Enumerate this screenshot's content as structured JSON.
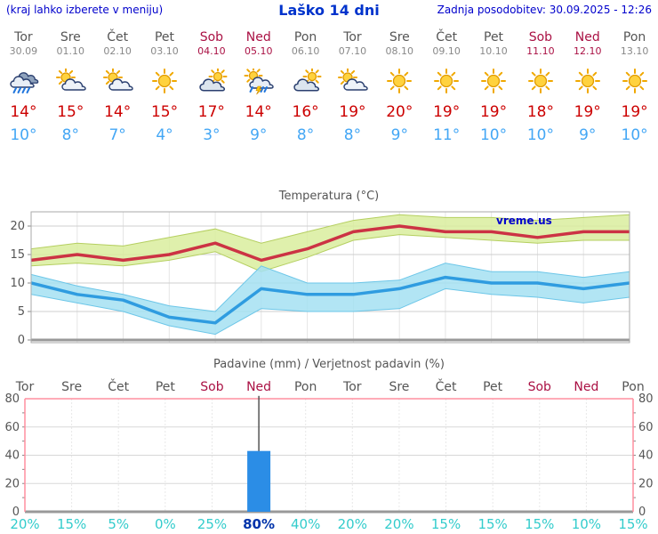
{
  "header": {
    "hint": "(kraj lahko izberete v meniju)",
    "title": "Laško 14 dni",
    "updated": "Zadnja posodobitev: 30.09.2025 - 12:26"
  },
  "colors": {
    "accent_blue": "#0000cc",
    "weekday_text": "#555555",
    "weekend_text": "#aa1144",
    "tmax_red": "#cc0000",
    "tmin_blue": "#44a7f5",
    "temp_line_max": "#cc3344",
    "temp_band_max": "#d9ed9e",
    "temp_line_min": "#2f9ce0",
    "temp_band_min": "#a5e0f2",
    "precip_bar": "#2b8de6",
    "probability_text": "#33cccc",
    "probability_highlight": "#0033aa",
    "precip_frame_pink": "#ff8f9f"
  },
  "days": [
    {
      "name": "Tor",
      "date": "30.09",
      "weekend": false,
      "icon": "rain",
      "tmax": "14°",
      "tmin": "10°"
    },
    {
      "name": "Sre",
      "date": "01.10",
      "weekend": false,
      "icon": "sun-cloud",
      "tmax": "15°",
      "tmin": "8°"
    },
    {
      "name": "Čet",
      "date": "02.10",
      "weekend": false,
      "icon": "sun-cloud",
      "tmax": "14°",
      "tmin": "7°"
    },
    {
      "name": "Pet",
      "date": "03.10",
      "weekend": false,
      "icon": "sun",
      "tmax": "15°",
      "tmin": "4°"
    },
    {
      "name": "Sob",
      "date": "04.10",
      "weekend": true,
      "icon": "cloud-sun",
      "tmax": "17°",
      "tmin": "3°"
    },
    {
      "name": "Ned",
      "date": "05.10",
      "weekend": true,
      "icon": "rain-sun-thunder",
      "tmax": "14°",
      "tmin": "9°"
    },
    {
      "name": "Pon",
      "date": "06.10",
      "weekend": false,
      "icon": "cloud-sun",
      "tmax": "16°",
      "tmin": "8°"
    },
    {
      "name": "Tor",
      "date": "07.10",
      "weekend": false,
      "icon": "sun-cloud",
      "tmax": "19°",
      "tmin": "8°"
    },
    {
      "name": "Sre",
      "date": "08.10",
      "weekend": false,
      "icon": "sun",
      "tmax": "20°",
      "tmin": "9°"
    },
    {
      "name": "Čet",
      "date": "09.10",
      "weekend": false,
      "icon": "sun",
      "tmax": "19°",
      "tmin": "11°"
    },
    {
      "name": "Pet",
      "date": "10.10",
      "weekend": false,
      "icon": "sun",
      "tmax": "19°",
      "tmin": "10°"
    },
    {
      "name": "Sob",
      "date": "11.10",
      "weekend": true,
      "icon": "sun",
      "tmax": "18°",
      "tmin": "10°"
    },
    {
      "name": "Ned",
      "date": "12.10",
      "weekend": true,
      "icon": "sun",
      "tmax": "19°",
      "tmin": "9°"
    },
    {
      "name": "Pon",
      "date": "13.10",
      "weekend": false,
      "icon": "sun",
      "tmax": "19°",
      "tmin": "10°"
    }
  ],
  "chart_data": [
    {
      "type": "line",
      "title": "Temperatura (°C)",
      "watermark": "vreme.us",
      "categories": [
        "30.09",
        "01.10",
        "02.10",
        "03.10",
        "04.10",
        "05.10",
        "06.10",
        "07.10",
        "08.10",
        "09.10",
        "10.10",
        "11.10",
        "12.10",
        "13.10"
      ],
      "yticks": [
        0,
        5,
        10,
        15,
        20
      ],
      "ylim": [
        0,
        22.5
      ],
      "grid": true,
      "legend_position": "none",
      "series": [
        {
          "name": "t_max",
          "color": "#cc3344",
          "values": [
            14,
            15,
            14,
            15,
            17,
            14,
            16,
            19,
            20,
            19,
            19,
            18,
            19,
            19
          ]
        },
        {
          "name": "t_max_band_hi",
          "values": [
            16,
            17,
            16.5,
            18,
            19.5,
            17,
            19,
            21,
            22,
            21.5,
            21.5,
            21,
            21.5,
            22
          ]
        },
        {
          "name": "t_max_band_lo",
          "values": [
            13,
            13.5,
            13,
            14,
            15.5,
            12,
            14.5,
            17.5,
            18.5,
            18,
            17.5,
            17,
            17.5,
            17.5
          ]
        },
        {
          "name": "t_min",
          "color": "#2f9ce0",
          "values": [
            10,
            8,
            7,
            4,
            3,
            9,
            8,
            8,
            9,
            11,
            10,
            10,
            9,
            10
          ]
        },
        {
          "name": "t_min_band_hi",
          "values": [
            11.5,
            9.5,
            8,
            6,
            5,
            13,
            10,
            10,
            10.5,
            13.5,
            12,
            12,
            11,
            12
          ]
        },
        {
          "name": "t_min_band_lo",
          "values": [
            8,
            6.5,
            5,
            2.5,
            1,
            5.5,
            5,
            5,
            5.5,
            9,
            8,
            7.5,
            6.5,
            7.5
          ]
        }
      ]
    },
    {
      "type": "bar",
      "title": "Padavine (mm) / Verjetnost padavin (%)",
      "categories": [
        "Tor",
        "Sre",
        "Čet",
        "Pet",
        "Sob",
        "Ned",
        "Pon",
        "Tor",
        "Sre",
        "Čet",
        "Pet",
        "Sob",
        "Ned",
        "Pon"
      ],
      "weekend_indices": [
        4,
        5,
        11,
        12
      ],
      "yticks": [
        0,
        20,
        40,
        60,
        80
      ],
      "ylim": [
        0,
        80
      ],
      "values_mm": [
        0,
        0,
        0,
        0,
        0,
        43,
        0,
        0,
        0,
        0,
        0,
        0,
        0,
        0
      ],
      "whisker": {
        "index": 5,
        "from": 43,
        "to": 82
      },
      "probabilities": [
        "20%",
        "15%",
        "5%",
        "0%",
        "25%",
        "80%",
        "40%",
        "20%",
        "20%",
        "15%",
        "15%",
        "15%",
        "10%",
        "15%"
      ],
      "highlight_index": 5,
      "bar_color": "#2b8de6"
    }
  ]
}
